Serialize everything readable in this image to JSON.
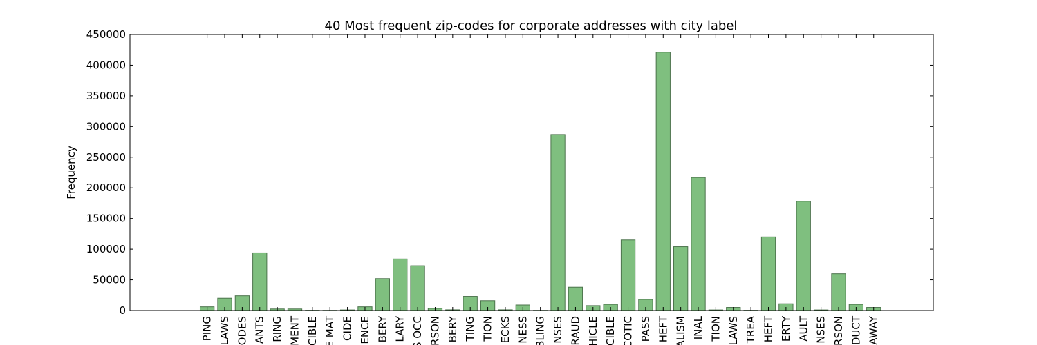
{
  "chart_data": {
    "type": "bar",
    "title": "40 Most frequent zip-codes for corporate addresses with city label",
    "xlabel": "",
    "ylabel": "Frequency",
    "ylim": [
      0,
      450000
    ],
    "yticks": [
      0,
      50000,
      100000,
      150000,
      200000,
      250000,
      300000,
      350000,
      400000,
      450000
    ],
    "grid": false,
    "bar_color": "#7fbf7f",
    "bar_edge_color": "#4c734c",
    "categories": [
      "PING",
      "LAWS",
      "ODES",
      "ANTS",
      "RING",
      "MENT",
      "CIBLE",
      "E MAT",
      "CIDE",
      "ENCE",
      "BERY",
      "LARY",
      "S OCC",
      "RSON",
      "BERY",
      "TING",
      "TION",
      "ECKS",
      "NESS",
      "BLING",
      "NSES",
      "RAUD",
      "HICLE",
      "CIBLE",
      "COTIC",
      "PASS",
      "HEFT",
      "ALISM",
      "INAL",
      "TION",
      "LAWS",
      "TREA",
      "HEFT",
      "ERTY",
      "AULT",
      "NSES",
      "RSON",
      "DUCT",
      "AWAY"
    ],
    "values": [
      6000,
      20000,
      24000,
      94000,
      2500,
      2500,
      400,
      300,
      1000,
      6000,
      52000,
      84000,
      73000,
      3500,
      1200,
      23000,
      16000,
      1200,
      9000,
      300,
      287000,
      38000,
      8000,
      10000,
      115000,
      18000,
      421000,
      104000,
      217000,
      1000,
      5000,
      400,
      120000,
      11000,
      178000,
      1000,
      60000,
      10000,
      5000
    ]
  }
}
